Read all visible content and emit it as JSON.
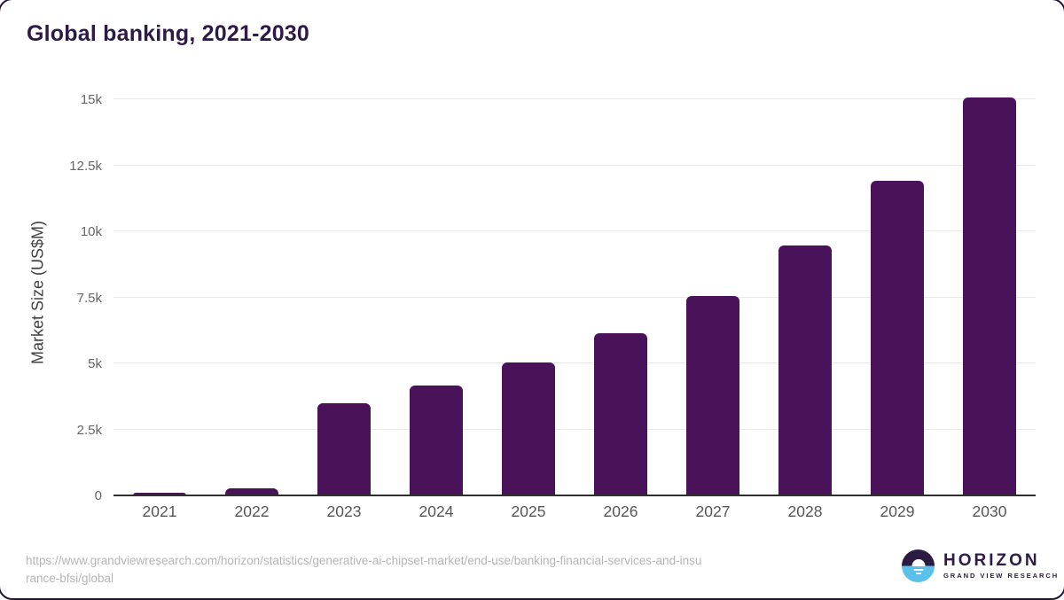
{
  "page": {
    "title": "Global banking, 2021-2030"
  },
  "chart_data": {
    "type": "bar",
    "title": "Global banking, 2021-2030",
    "categories": [
      "2021",
      "2022",
      "2023",
      "2024",
      "2025",
      "2026",
      "2027",
      "2028",
      "2029",
      "2030"
    ],
    "values": [
      100,
      270,
      3480,
      4150,
      5050,
      6150,
      7560,
      9470,
      11900,
      15080
    ],
    "xlabel": "",
    "ylabel": "Market Size (US$M)",
    "ylim": [
      0,
      15000
    ],
    "ytick_values": [
      0,
      2500,
      5000,
      7500,
      10000,
      12500,
      15000
    ],
    "ytick_labels": [
      "0",
      "2.5k",
      "5k",
      "7.5k",
      "10k",
      "12.5k",
      "15k"
    ],
    "grid": true,
    "legend_position": "none",
    "bar_color": "#4a1259"
  },
  "footer": {
    "source_url_lines": [
      "https://www.grandviewresearch.com/horizon/statistics/generative-ai-chipset-market/end-use/banking-financial-services-and-insu",
      "rance-bfsi/global"
    ]
  },
  "branding": {
    "logo_title": "HORIZON",
    "logo_subtitle": "GRAND VIEW RESEARCH",
    "logo_top_color": "#2b1a42",
    "logo_bottom_color": "#5cc0ed"
  }
}
